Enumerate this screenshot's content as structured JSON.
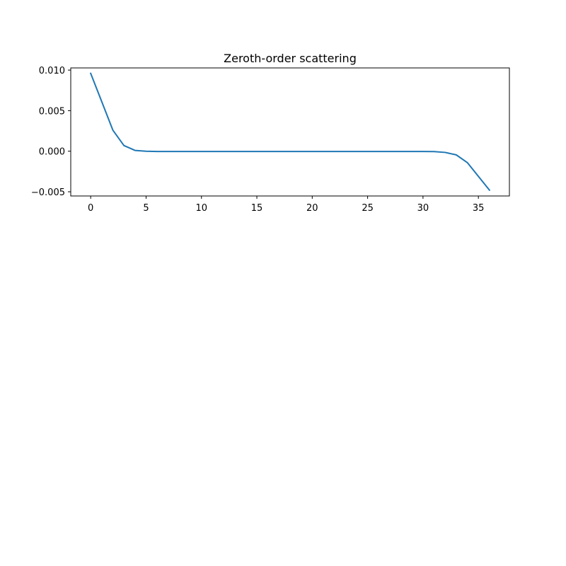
{
  "chart_data": {
    "type": "line",
    "title": "Zeroth-order scattering",
    "xlabel": "",
    "ylabel": "",
    "xlim": [
      -1.8,
      37.8
    ],
    "ylim": [
      -0.00552,
      0.01027
    ],
    "xticks": [
      0,
      5,
      10,
      15,
      20,
      25,
      30,
      35
    ],
    "xtick_labels": [
      "0",
      "5",
      "10",
      "15",
      "20",
      "25",
      "30",
      "35"
    ],
    "yticks": [
      -0.005,
      0.0,
      0.005,
      0.01
    ],
    "ytick_labels": [
      "−0.005",
      "0.000",
      "0.005",
      "0.010"
    ],
    "grid": false,
    "legend": false,
    "series": [
      {
        "color": "#1f77b4",
        "x": [
          0,
          1,
          2,
          3,
          4,
          5,
          6,
          7,
          8,
          9,
          10,
          11,
          12,
          13,
          14,
          15,
          16,
          17,
          18,
          19,
          20,
          21,
          22,
          23,
          24,
          25,
          26,
          27,
          28,
          29,
          30,
          31,
          32,
          33,
          34,
          35,
          36
        ],
        "values": [
          0.0096,
          0.0061,
          0.0026,
          0.0007,
          0.0001,
          0.0,
          -3e-05,
          -3e-05,
          -3e-05,
          -3e-05,
          -3e-05,
          -3e-05,
          -3e-05,
          -3e-05,
          -3e-05,
          -3e-05,
          -3e-05,
          -3e-05,
          -3e-05,
          -3e-05,
          -3e-05,
          -3e-05,
          -3e-05,
          -3e-05,
          -3e-05,
          -3e-05,
          -3e-05,
          -3e-05,
          -3e-05,
          -3e-05,
          -3e-05,
          -5e-05,
          -0.00015,
          -0.00045,
          -0.0014,
          -0.0031,
          -0.0048
        ]
      }
    ]
  }
}
